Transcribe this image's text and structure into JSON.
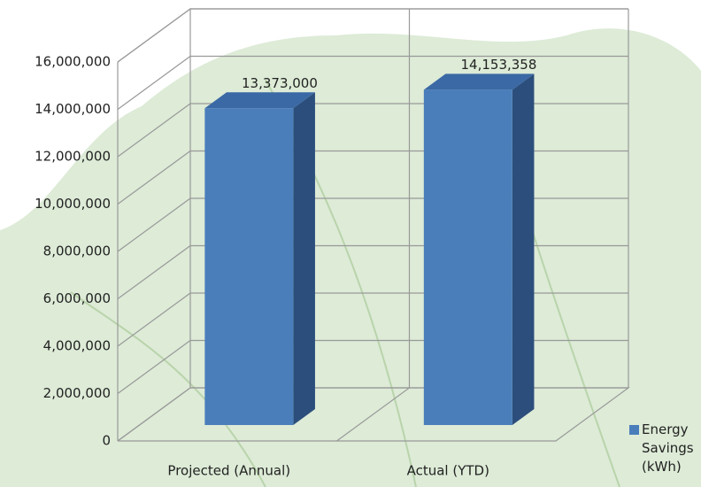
{
  "chart_data": {
    "type": "bar3d",
    "categories": [
      "Projected (Annual)",
      "Actual (YTD)"
    ],
    "series": [
      {
        "name": "Energy Savings (kWh)",
        "color": "#4a7ebb",
        "values": [
          13373000,
          14153358
        ],
        "value_labels": [
          "13,373,000",
          "14,153,358"
        ]
      }
    ],
    "ylim": [
      0,
      16000000
    ],
    "yticks": [
      {
        "value": 0,
        "label": "0"
      },
      {
        "value": 2000000,
        "label": "2,000,000"
      },
      {
        "value": 4000000,
        "label": "4,000,000"
      },
      {
        "value": 6000000,
        "label": "6,000,000"
      },
      {
        "value": 8000000,
        "label": "8,000,000"
      },
      {
        "value": 10000000,
        "label": "10,000,000"
      },
      {
        "value": 12000000,
        "label": "12,000,000"
      },
      {
        "value": 14000000,
        "label": "14,000,000"
      },
      {
        "value": 16000000,
        "label": "16,000,000"
      }
    ],
    "grid": true,
    "legend": "right"
  }
}
